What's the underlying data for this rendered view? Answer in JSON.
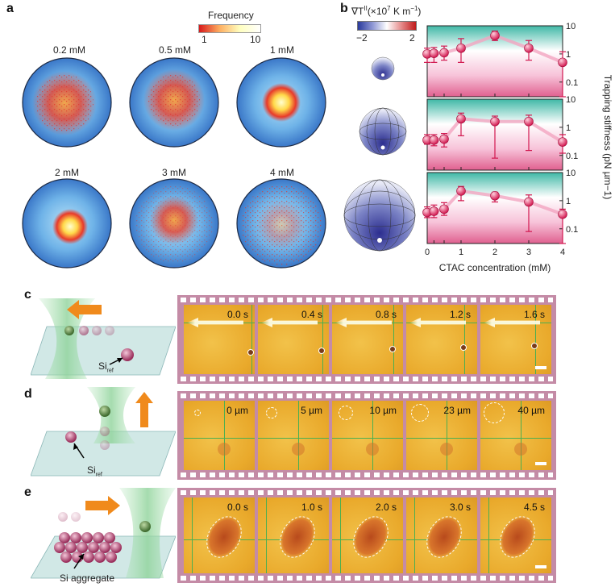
{
  "panels": {
    "a": {
      "letter": "a",
      "colorbar": {
        "title": "Frequency",
        "min": "1",
        "max": "10"
      },
      "concentrations": [
        "0.2 mM",
        "0.5 mM",
        "1 mM",
        "2 mM",
        "3 mM",
        "4 mM"
      ]
    },
    "b": {
      "letter": "b",
      "gradient_label_prefix": "∇T",
      "gradient_label_sup": "II",
      "gradient_label_units": "(×10",
      "gradient_label_exp": "7",
      "gradient_label_suffix": " K m",
      "gradient_label_exp2": "−1",
      "gradient_label_close": ")",
      "scale_min": "−2",
      "scale_max": "2",
      "xlabel": "CTAC concentration (mM)",
      "ylabel": "Trapping stiffness (pN µm",
      "ylabel_exp": "−1",
      "ylabel_close": ")",
      "x_ticks": [
        "0",
        "1",
        "2",
        "3",
        "4"
      ],
      "y_ticks": [
        "10",
        "1",
        "0.1"
      ]
    },
    "c": {
      "letter": "c",
      "si_label": "Si",
      "si_sub": "ref",
      "frames": [
        "0.0 s",
        "0.4 s",
        "0.8 s",
        "1.2 s",
        "1.6 s"
      ]
    },
    "d": {
      "letter": "d",
      "si_label": "Si",
      "si_sub": "ref",
      "frames": [
        "0 µm",
        "5 µm",
        "10 µm",
        "23 µm",
        "40 µm"
      ]
    },
    "e": {
      "letter": "e",
      "si_label": "Si aggregate",
      "frames": [
        "0.0 s",
        "1.0 s",
        "2.0 s",
        "3.0 s",
        "4.5 s"
      ]
    }
  },
  "chart_data": [
    {
      "type": "scatter",
      "xlabel": "CTAC concentration (mM)",
      "ylabel": "Trapping stiffness (pN µm−1)",
      "yscale": "log",
      "ylim": [
        0.03,
        10
      ],
      "xlim": [
        0,
        4
      ],
      "x": [
        0,
        0.2,
        0.5,
        1,
        2,
        3,
        4
      ],
      "series": [
        {
          "values": [
            1.0,
            1.05,
            1.1,
            1.6,
            4.5,
            1.6,
            0.5
          ],
          "err_low": [
            0.5,
            0.5,
            0.6,
            0.5,
            3.0,
            0.6,
            0.03
          ],
          "err_high": [
            1.6,
            1.7,
            1.9,
            3.5,
            6.5,
            3.0,
            1.2
          ]
        },
        {
          "values": [
            0.35,
            0.35,
            0.38,
            2.0,
            1.6,
            1.6,
            0.3
          ],
          "err_low": [
            0.25,
            0.22,
            0.2,
            0.5,
            0.08,
            0.15,
            0.12
          ],
          "err_high": [
            0.55,
            0.55,
            0.6,
            3.2,
            2.5,
            2.7,
            0.55
          ]
        },
        {
          "values": [
            0.38,
            0.42,
            0.5,
            2.2,
            1.5,
            0.9,
            0.33
          ],
          "err_low": [
            0.25,
            0.25,
            0.3,
            1.0,
            0.9,
            0.08,
            0.03
          ],
          "err_high": [
            0.6,
            0.7,
            0.85,
            3.2,
            2.0,
            1.6,
            0.5
          ]
        }
      ]
    }
  ]
}
